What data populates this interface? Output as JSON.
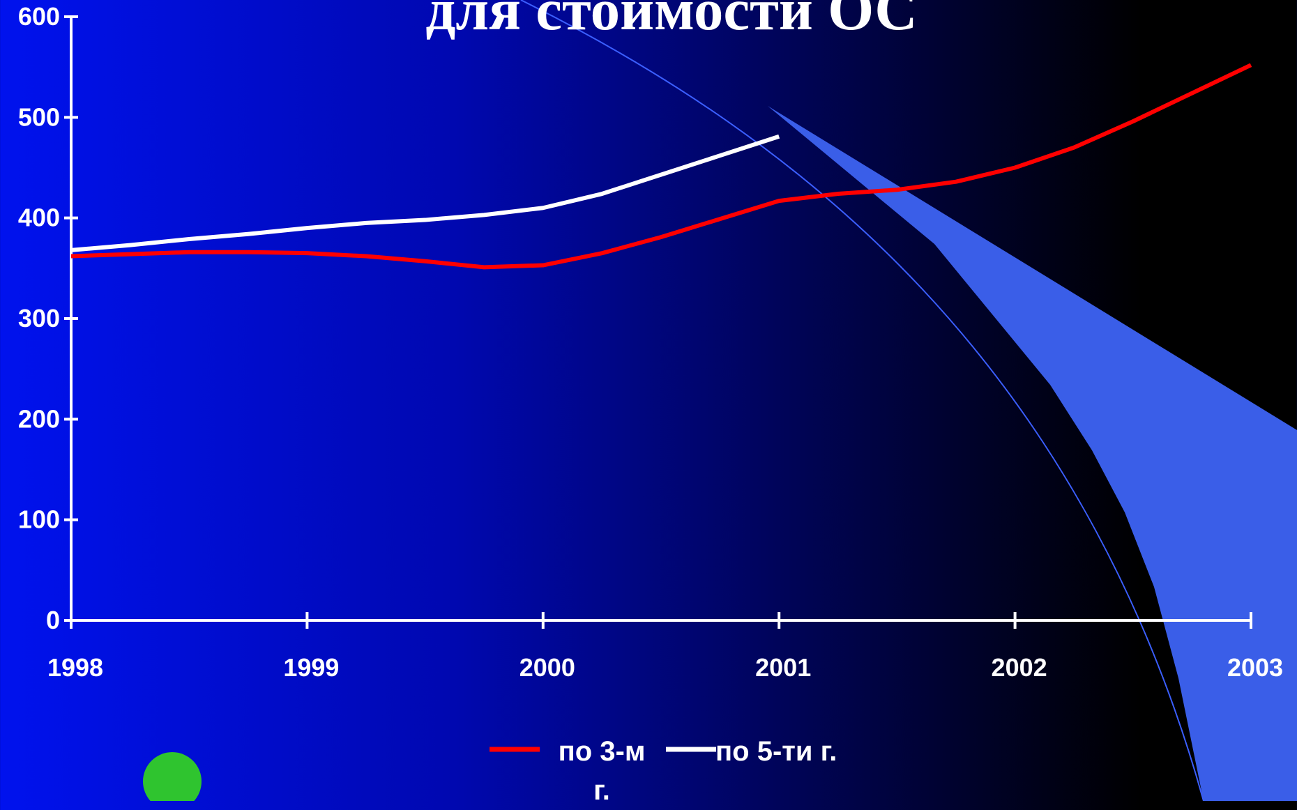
{
  "chart_data": {
    "type": "line",
    "title": "для стоимости ОС",
    "x": [
      1998,
      1998.25,
      1998.5,
      1998.75,
      1999,
      1999.25,
      1999.5,
      1999.75,
      2000,
      2000.25,
      2000.5,
      2000.75,
      2001,
      2001.25,
      2001.5,
      2001.75,
      2002,
      2002.25,
      2002.5,
      2002.75,
      2003
    ],
    "series": [
      {
        "name": "по 3-м г.",
        "color": "#ff0000",
        "values": [
          362,
          364,
          366,
          366,
          365,
          362,
          357,
          351,
          353,
          365,
          381,
          399,
          417,
          424,
          428,
          436,
          450,
          470,
          496,
          524,
          552
        ]
      },
      {
        "name": "по 5-ти г.",
        "color": "#ffffff",
        "values": [
          368,
          373,
          379,
          384,
          390,
          395,
          398,
          403,
          410,
          424,
          443,
          462,
          481,
          null,
          null,
          null,
          null,
          null,
          null,
          null,
          null
        ]
      }
    ],
    "xlim": [
      1998,
      2003
    ],
    "xticks": [
      1998,
      1999,
      2000,
      2001,
      2002,
      2003
    ],
    "ylim": [
      0,
      600
    ],
    "yticks": [
      0,
      100,
      200,
      300,
      400,
      500,
      600
    ],
    "legend": "bottom"
  }
}
